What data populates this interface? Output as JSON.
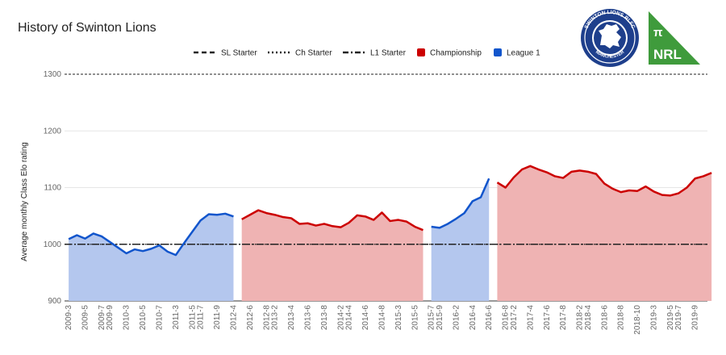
{
  "chart_data": {
    "type": "area",
    "title": "History of Swinton Lions",
    "xlabel": "",
    "ylabel": "Average monthly Class Elo rating",
    "ylim": [
      900,
      1300
    ],
    "y_ticks": [
      900,
      1000,
      1100,
      1200,
      1300
    ],
    "x_tick_labels": [
      "2009-3",
      "2009-5",
      "2009-7",
      "2009-9",
      "2010-3",
      "2010-5",
      "2010-7",
      "2011-3",
      "2011-5",
      "2011-7",
      "2011-9",
      "2012-4",
      "2012-6",
      "2012-8",
      "2013-2",
      "2013-4",
      "2013-6",
      "2013-8",
      "2014-2",
      "2014-4",
      "2014-6",
      "2014-8",
      "2015-3",
      "2015-5",
      "2015-7",
      "2015-9",
      "2016-2",
      "2016-4",
      "2016-6",
      "2016-8",
      "2017-2",
      "2017-4",
      "2017-6",
      "2017-8",
      "2018-2",
      "2018-4",
      "2018-6",
      "2018-8",
      "2018-10",
      "2019-3",
      "2019-5",
      "2019-7",
      "2019-9"
    ],
    "x_slots": 78,
    "reference_lines": [
      {
        "name": "SL Starter",
        "value": 1300,
        "style": "dashed"
      },
      {
        "name": "Ch Starter",
        "value": 1000,
        "style": "dotted"
      },
      {
        "name": "L1 Starter",
        "value": 1000,
        "style": "dashdot"
      }
    ],
    "series": [
      {
        "name": "League 1",
        "color": "#1155cc",
        "fill": "#b4c7ee",
        "start": 0,
        "values": [
          1009,
          1016,
          1010,
          1019,
          1014,
          1004,
          994,
          984,
          991,
          988,
          992,
          998,
          987,
          981,
          1002,
          1022,
          1042,
          1053,
          1052,
          1054,
          1049
        ]
      },
      {
        "name": "Championship",
        "color": "#cc0000",
        "fill": "#efb3b3",
        "start": 21,
        "values": [
          1044,
          1052,
          1060,
          1055,
          1052,
          1048,
          1046,
          1036,
          1037,
          1033,
          1036,
          1032,
          1030,
          1038,
          1051,
          1049,
          1043,
          1056,
          1041,
          1043,
          1040,
          1031,
          1025
        ]
      },
      {
        "name": "League 1",
        "color": "#1155cc",
        "fill": "#b4c7ee",
        "start": 44,
        "values": [
          1031,
          1029,
          1036,
          1045,
          1055,
          1076,
          1083,
          1116
        ]
      },
      {
        "name": "Championship",
        "color": "#cc0000",
        "fill": "#efb3b3",
        "start": 52,
        "values": [
          1109,
          1100,
          1118,
          1132,
          1138,
          1132,
          1127,
          1120,
          1117,
          1128,
          1130,
          1128,
          1124,
          1107,
          1098,
          1092,
          1095,
          1094,
          1102,
          1093,
          1087,
          1086,
          1090,
          1100,
          1116,
          1120,
          1126
        ]
      }
    ],
    "legend": [
      "SL Starter",
      "Ch Starter",
      "L1 Starter",
      "Championship",
      "League 1"
    ]
  },
  "logos": {
    "club": {
      "top_text": "SWINTON LIONS RLFC",
      "bottom_text": "MANCHESTER",
      "color": "#1e3f8c"
    },
    "league": {
      "symbol": "π",
      "text": "NRL",
      "color": "#3f9b3c"
    }
  }
}
